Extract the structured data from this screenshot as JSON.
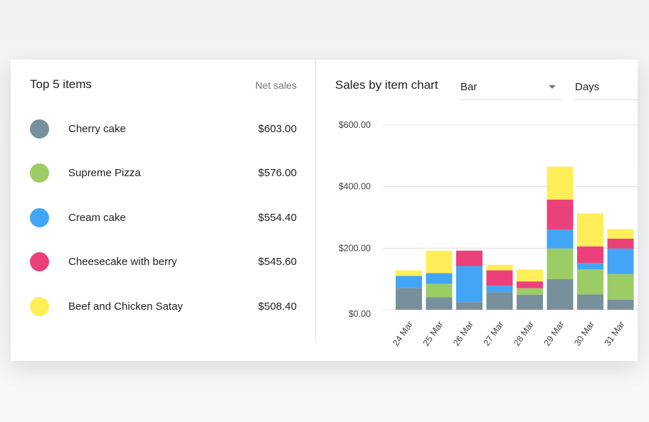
{
  "top_items": {
    "title": "Top 5 items",
    "column_label": "Net sales",
    "items": [
      {
        "name": "Cherry cake",
        "value": "$603.00",
        "color": "#78909c"
      },
      {
        "name": "Supreme Pizza",
        "value": "$576.00",
        "color": "#9ccc65"
      },
      {
        "name": "Cream cake",
        "value": "$554.40",
        "color": "#42a5f5"
      },
      {
        "name": "Cheesecake with berry",
        "value": "$545.60",
        "color": "#ec407a"
      },
      {
        "name": "Beef and Chicken Satay",
        "value": "$508.40",
        "color": "#ffee58"
      }
    ]
  },
  "chart_panel": {
    "title": "Sales by item chart",
    "chart_type_select": "Bar",
    "period_select": "Days"
  },
  "chart_data": {
    "type": "bar",
    "stacked": true,
    "categories": [
      "24 Mar",
      "25 Mar",
      "26 Mar",
      "27 Mar",
      "28 Mar",
      "29 Mar",
      "30 Mar",
      "31 Mar"
    ],
    "series": [
      {
        "name": "Cherry cake",
        "color": "#78909c",
        "values": [
          71,
          41,
          25,
          57,
          49,
          100,
          50,
          33
        ]
      },
      {
        "name": "Supreme Pizza",
        "color": "#9ccc65",
        "values": [
          0,
          43,
          0,
          0,
          21,
          99,
          81,
          83
        ]
      },
      {
        "name": "Cream cake",
        "color": "#42a5f5",
        "values": [
          39,
          35,
          117,
          21,
          0,
          61,
          21,
          83
        ]
      },
      {
        "name": "Cheesecake with berry",
        "color": "#ec407a",
        "values": [
          0,
          0,
          50,
          50,
          22,
          98,
          54,
          32
        ]
      },
      {
        "name": "Beef and Chicken Satay",
        "color": "#ffee58",
        "values": [
          18,
          73,
          0,
          18,
          39,
          107,
          107,
          31
        ]
      }
    ],
    "y_ticks": [
      "$0.00",
      "$200.00",
      "$400.00",
      "$600.00"
    ],
    "y_tick_values": [
      0,
      200,
      400,
      600
    ],
    "ylim": [
      0,
      600
    ],
    "grid": true
  }
}
